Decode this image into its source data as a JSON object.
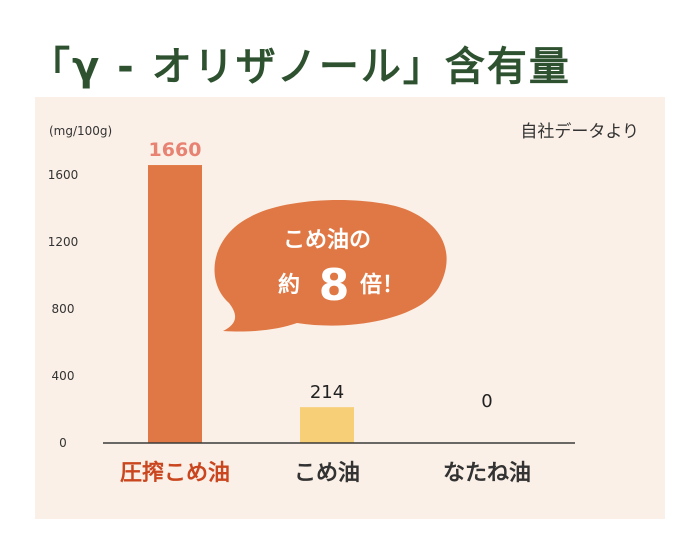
{
  "title": "「γ - オリザノール」含有量",
  "source_note": "自社データより",
  "callout": {
    "line1": "こめ油の",
    "prefix": "約",
    "number": "8",
    "suffix": "倍！"
  },
  "colors": {
    "title": "#2e5230",
    "panel_background": "#fbf0e7",
    "highlight": "#e07845",
    "highlight_label": "#c9461f",
    "highlight_value": "#e88272",
    "bar_secondary": "#f7cf77",
    "axis": "#3a3a3a"
  },
  "chart_data": {
    "type": "bar",
    "unit_label": "(mg/100g)",
    "categories": [
      "圧搾こめ油",
      "こめ油",
      "なたね油"
    ],
    "values": [
      1660,
      214,
      0
    ],
    "value_labels": [
      "1660",
      "214",
      "0"
    ],
    "yticks": [
      0,
      400,
      800,
      1200,
      1600
    ],
    "ylim": [
      0,
      1720
    ],
    "grid": false,
    "bar_colors": [
      "#e07845",
      "#f7cf77",
      "#e07845"
    ]
  }
}
